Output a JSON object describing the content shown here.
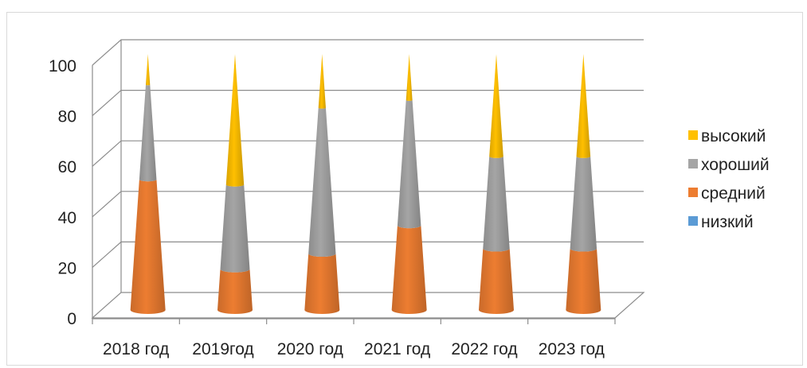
{
  "chart_data": {
    "type": "bar",
    "style": "3d-cone-stacked",
    "categories": [
      "2018 год",
      "2019год",
      "2020 год",
      "2021 год",
      "2022 год",
      "2023 год"
    ],
    "series": [
      {
        "name": "низкий",
        "color": "#5b9bd5",
        "values": [
          0,
          0,
          0,
          0,
          0,
          0
        ]
      },
      {
        "name": "средний",
        "color": "#ed7d31",
        "values": [
          51,
          16,
          22,
          33,
          24,
          24
        ]
      },
      {
        "name": "хороший",
        "color": "#a5a5a5",
        "values": [
          37,
          33,
          57,
          49,
          36,
          36
        ]
      },
      {
        "name": "высокий",
        "color": "#ffc000",
        "values": [
          12,
          51,
          21,
          18,
          40,
          40
        ]
      }
    ],
    "yticks": [
      0,
      20,
      40,
      60,
      80,
      100
    ],
    "ylim": [
      0,
      100
    ],
    "grid": true,
    "legend": "right",
    "legend_order": [
      "высокий",
      "хороший",
      "средний",
      "низкий"
    ],
    "title": "",
    "xlabel": "",
    "ylabel": ""
  }
}
